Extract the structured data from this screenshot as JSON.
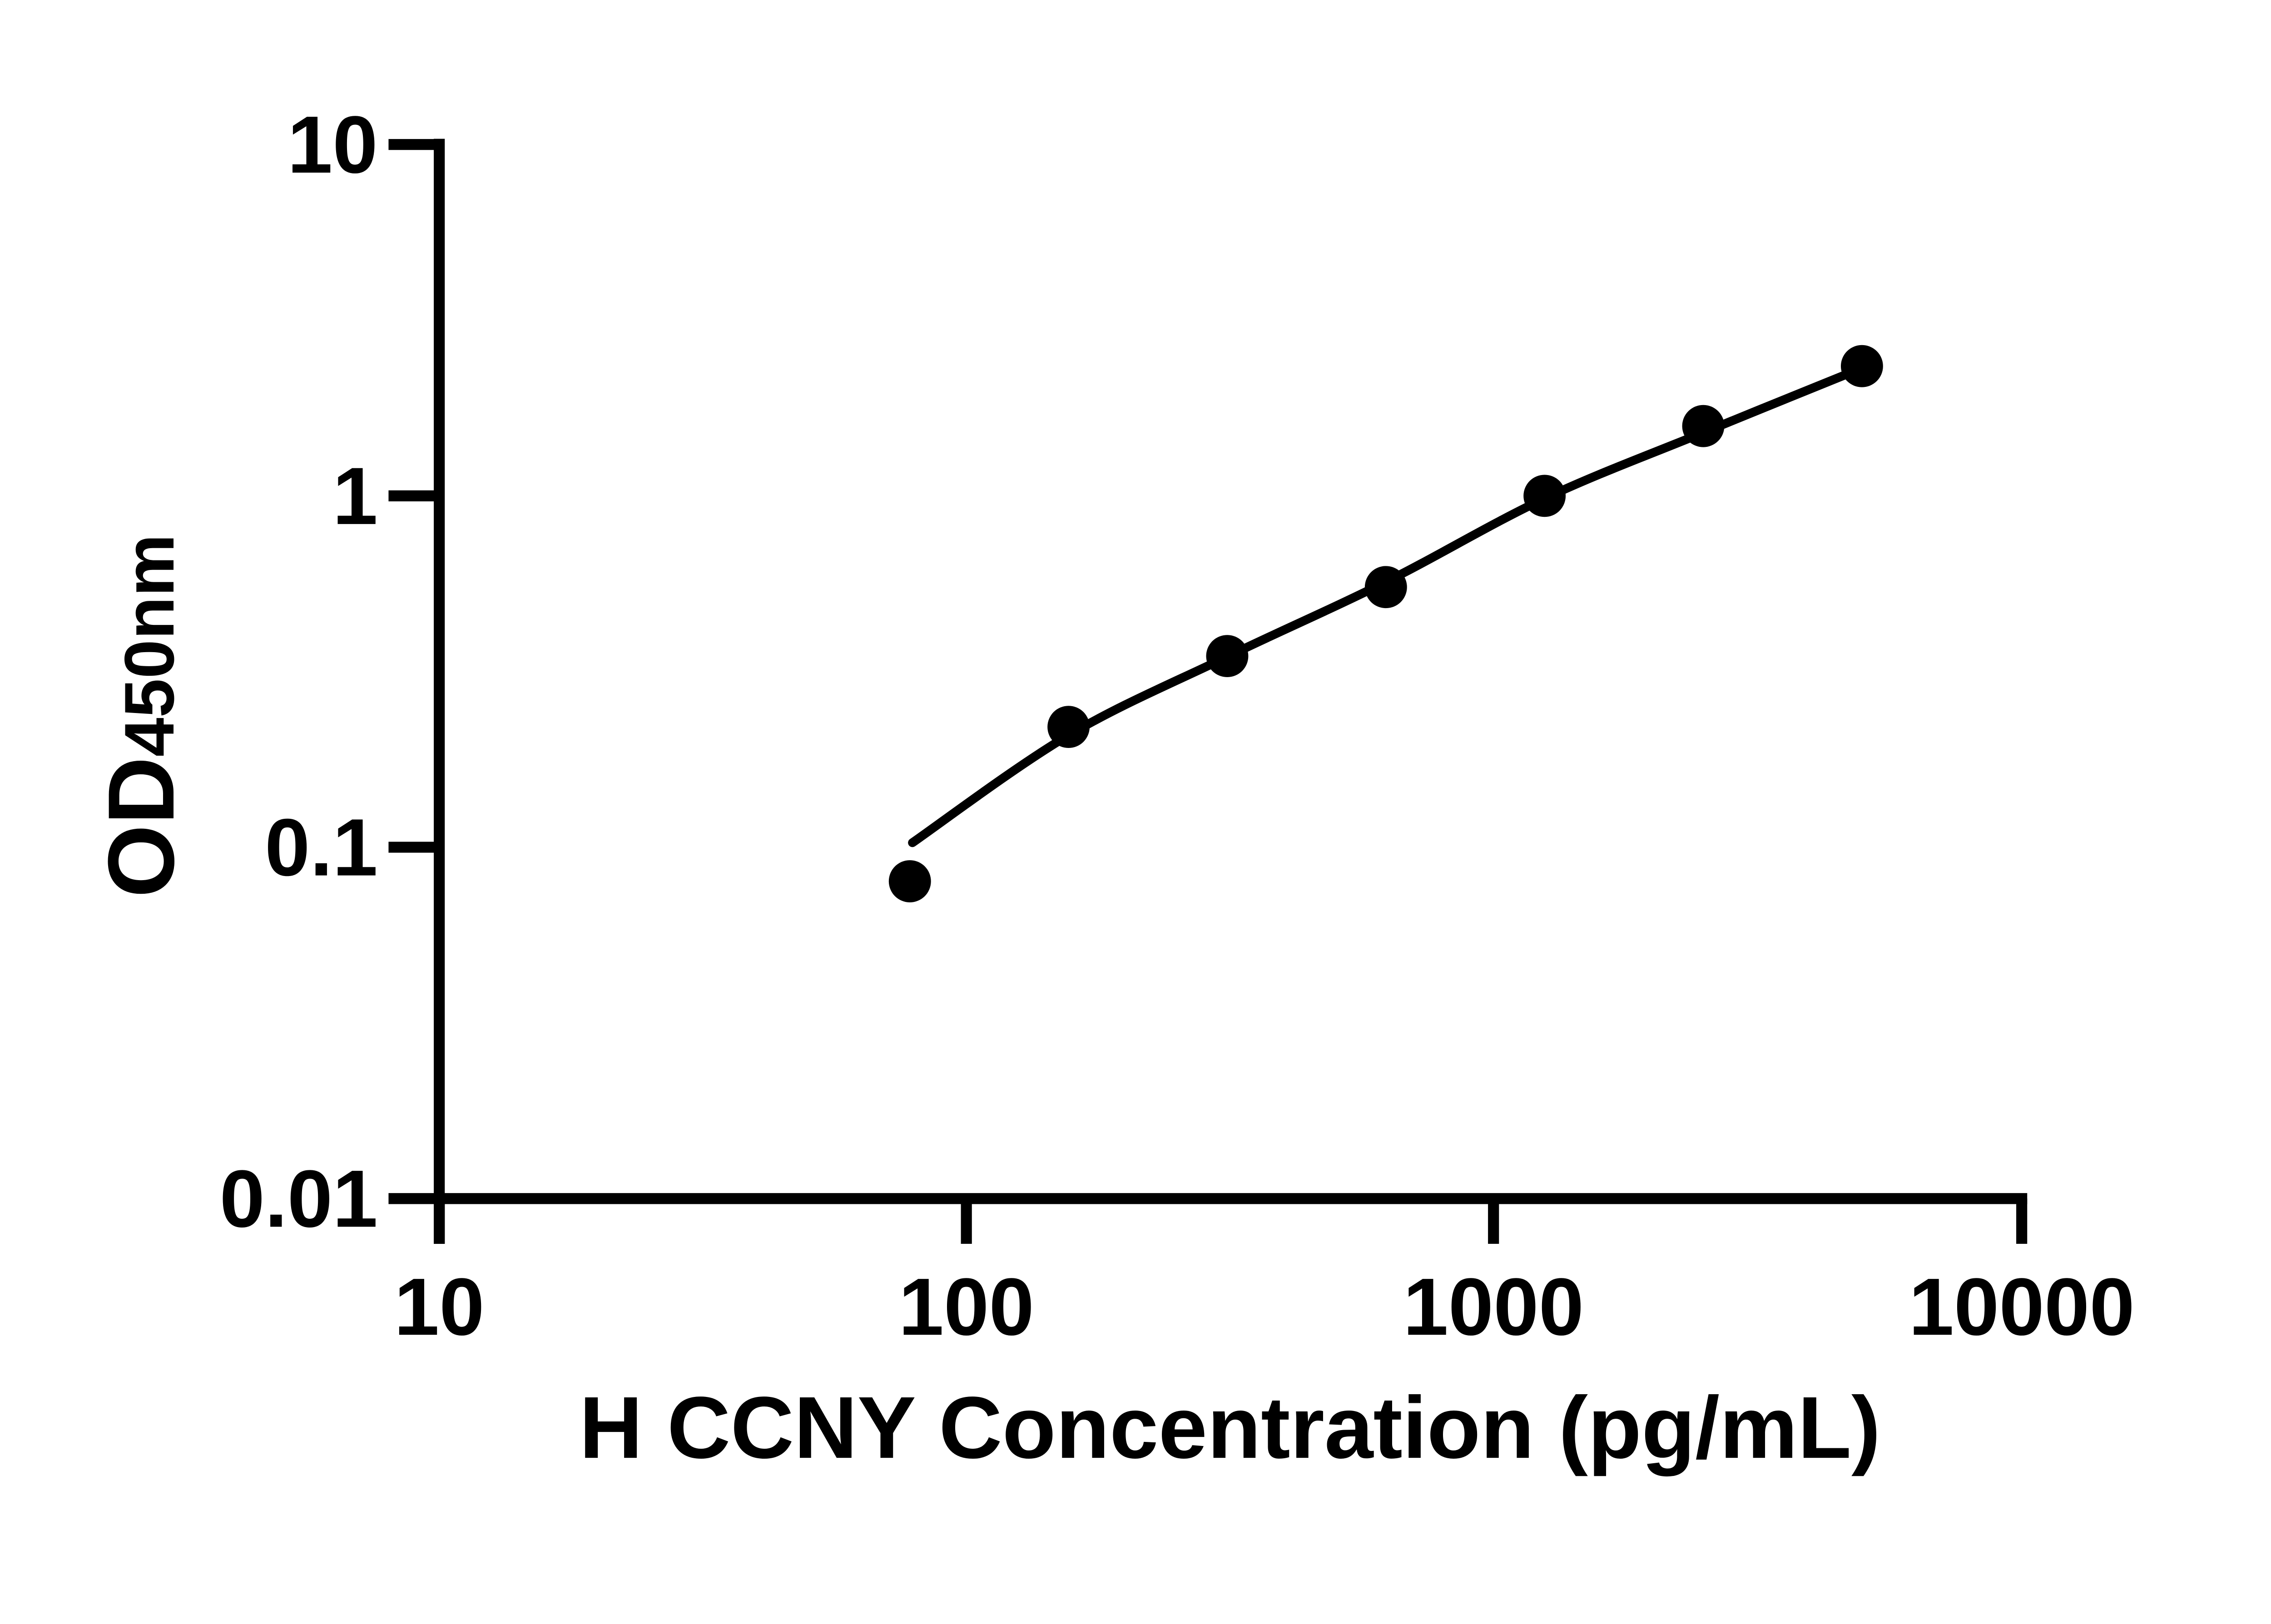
{
  "chart_data": {
    "type": "scatter",
    "title": "",
    "xlabel": "H CCNY Concentration (pg/mL)",
    "ylabel_main": "OD",
    "ylabel_sub": "450nm",
    "x_scale": "log",
    "y_scale": "log",
    "xlim": [
      10,
      10000
    ],
    "ylim": [
      0.01,
      10
    ],
    "grid": false,
    "legend": "none",
    "x_ticks": [
      {
        "value": 10,
        "label": "10"
      },
      {
        "value": 100,
        "label": "100"
      },
      {
        "value": 1000,
        "label": "1000"
      },
      {
        "value": 10000,
        "label": "10000"
      }
    ],
    "y_ticks": [
      {
        "value": 10,
        "label": "10"
      },
      {
        "value": 1,
        "label": "1"
      },
      {
        "value": 0.1,
        "label": "0.1"
      },
      {
        "value": 0.01,
        "label": "0.01"
      }
    ],
    "series": [
      {
        "name": "standard-points",
        "marker": "filled-circle",
        "points": [
          {
            "x": 78.125,
            "y": 0.08
          },
          {
            "x": 156.25,
            "y": 0.22
          },
          {
            "x": 312.5,
            "y": 0.35
          },
          {
            "x": 625,
            "y": 0.55
          },
          {
            "x": 1250,
            "y": 1.0
          },
          {
            "x": 2500,
            "y": 1.58
          },
          {
            "x": 5000,
            "y": 2.34
          }
        ]
      }
    ],
    "fit_curve": {
      "name": "standard-curve-fit",
      "points": [
        {
          "x": 79,
          "y": 0.103
        },
        {
          "x": 156,
          "y": 0.208
        },
        {
          "x": 313,
          "y": 0.349
        },
        {
          "x": 625,
          "y": 0.569
        },
        {
          "x": 1250,
          "y": 0.983
        },
        {
          "x": 2500,
          "y": 1.514
        },
        {
          "x": 5000,
          "y": 2.31
        }
      ]
    },
    "colors": {
      "marker": "#000000",
      "line": "#000000",
      "axis": "#000000",
      "background": "#ffffff"
    }
  }
}
